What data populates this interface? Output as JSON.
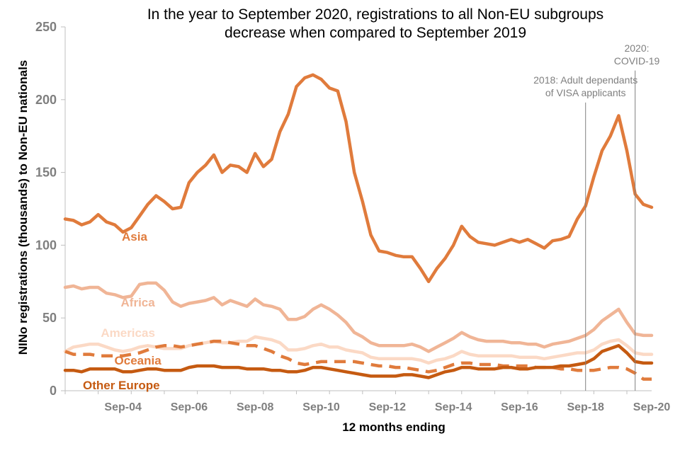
{
  "chart_data": {
    "type": "line",
    "title_lines": [
      "In the year to September 2020, registrations to all Non-EU subgroups",
      "decrease when compared to September 2019"
    ],
    "xlabel": "12 months ending",
    "ylabel": "NINo registrations (thousands) to Non-EU nationals",
    "ylim": [
      0,
      250
    ],
    "yticks": [
      0,
      50,
      100,
      150,
      200,
      250
    ],
    "xlim": [
      2003.0,
      2020.75
    ],
    "xticks": [
      {
        "x": 2004.75,
        "label": "Sep-04"
      },
      {
        "x": 2006.75,
        "label": "Sep-06"
      },
      {
        "x": 2008.75,
        "label": "Sep-08"
      },
      {
        "x": 2010.75,
        "label": "Sep-10"
      },
      {
        "x": 2012.75,
        "label": "Sep-12"
      },
      {
        "x": 2014.75,
        "label": "Sep-14"
      },
      {
        "x": 2016.75,
        "label": "Sep-16"
      },
      {
        "x": 2018.75,
        "label": "Sep-18"
      },
      {
        "x": 2020.75,
        "label": "Sep-20"
      }
    ],
    "series": [
      {
        "name": "Asia",
        "color": "#e07b3c",
        "dashed": false,
        "width": 4.5,
        "label_x": 2005.1,
        "label_y": 103,
        "x": [
          2003.0,
          2003.25,
          2003.5,
          2003.75,
          2004.0,
          2004.25,
          2004.5,
          2004.75,
          2005.0,
          2005.25,
          2005.5,
          2005.75,
          2006.0,
          2006.25,
          2006.5,
          2006.75,
          2007.0,
          2007.25,
          2007.5,
          2007.75,
          2008.0,
          2008.25,
          2008.5,
          2008.75,
          2009.0,
          2009.25,
          2009.5,
          2009.75,
          2010.0,
          2010.25,
          2010.5,
          2010.75,
          2011.0,
          2011.25,
          2011.5,
          2011.75,
          2012.0,
          2012.25,
          2012.5,
          2012.75,
          2013.0,
          2013.25,
          2013.5,
          2013.75,
          2014.0,
          2014.25,
          2014.5,
          2014.75,
          2015.0,
          2015.25,
          2015.5,
          2015.75,
          2016.0,
          2016.25,
          2016.5,
          2016.75,
          2017.0,
          2017.25,
          2017.5,
          2017.75,
          2018.0,
          2018.25,
          2018.5,
          2018.75,
          2019.0,
          2019.25,
          2019.5,
          2019.75,
          2020.0,
          2020.25,
          2020.5,
          2020.75
        ],
        "values": [
          118,
          117,
          114,
          116,
          121,
          116,
          114,
          109,
          112,
          120,
          128,
          134,
          130,
          125,
          126,
          143,
          150,
          155,
          162,
          150,
          155,
          154,
          150,
          163,
          154,
          159,
          178,
          190,
          209,
          215,
          217,
          214,
          208,
          206,
          185,
          150,
          130,
          107,
          96,
          95,
          93,
          92,
          92,
          84,
          75,
          84,
          91,
          100,
          113,
          106,
          102,
          101,
          100,
          102,
          104,
          102,
          104,
          101,
          98,
          103,
          104,
          106,
          118,
          127,
          147,
          165,
          175,
          189,
          165,
          135,
          128,
          126
        ]
      },
      {
        "name": "Africa",
        "color": "#f0b596",
        "dashed": false,
        "width": 4.5,
        "label_x": 2005.2,
        "label_y": 58,
        "x": [
          2003.0,
          2003.25,
          2003.5,
          2003.75,
          2004.0,
          2004.25,
          2004.5,
          2004.75,
          2005.0,
          2005.25,
          2005.5,
          2005.75,
          2006.0,
          2006.25,
          2006.5,
          2006.75,
          2007.0,
          2007.25,
          2007.5,
          2007.75,
          2008.0,
          2008.25,
          2008.5,
          2008.75,
          2009.0,
          2009.25,
          2009.5,
          2009.75,
          2010.0,
          2010.25,
          2010.5,
          2010.75,
          2011.0,
          2011.25,
          2011.5,
          2011.75,
          2012.0,
          2012.25,
          2012.5,
          2012.75,
          2013.0,
          2013.25,
          2013.5,
          2013.75,
          2014.0,
          2014.25,
          2014.5,
          2014.75,
          2015.0,
          2015.25,
          2015.5,
          2015.75,
          2016.0,
          2016.25,
          2016.5,
          2016.75,
          2017.0,
          2017.25,
          2017.5,
          2017.75,
          2018.0,
          2018.25,
          2018.5,
          2018.75,
          2019.0,
          2019.25,
          2019.5,
          2019.75,
          2020.0,
          2020.25,
          2020.5,
          2020.75
        ],
        "values": [
          71,
          72,
          70,
          71,
          71,
          67,
          66,
          64,
          65,
          73,
          74,
          74,
          69,
          61,
          58,
          60,
          61,
          62,
          64,
          59,
          62,
          60,
          58,
          63,
          59,
          58,
          56,
          49,
          49,
          51,
          56,
          59,
          56,
          52,
          47,
          40,
          37,
          33,
          31,
          31,
          31,
          31,
          32,
          30,
          27,
          30,
          33,
          36,
          40,
          37,
          35,
          34,
          34,
          34,
          33,
          33,
          32,
          32,
          30,
          32,
          33,
          34,
          36,
          38,
          42,
          48,
          52,
          56,
          47,
          39,
          38,
          38
        ]
      },
      {
        "name": "Americas",
        "color": "#fbd9c5",
        "dashed": false,
        "width": 4.5,
        "label_x": 2004.9,
        "label_y": 37,
        "x": [
          2003.0,
          2003.25,
          2003.5,
          2003.75,
          2004.0,
          2004.25,
          2004.5,
          2004.75,
          2005.0,
          2005.25,
          2005.5,
          2005.75,
          2006.0,
          2006.25,
          2006.5,
          2006.75,
          2007.0,
          2007.25,
          2007.5,
          2007.75,
          2008.0,
          2008.25,
          2008.5,
          2008.75,
          2009.0,
          2009.25,
          2009.5,
          2009.75,
          2010.0,
          2010.25,
          2010.5,
          2010.75,
          2011.0,
          2011.25,
          2011.5,
          2011.75,
          2012.0,
          2012.25,
          2012.5,
          2012.75,
          2013.0,
          2013.25,
          2013.5,
          2013.75,
          2014.0,
          2014.25,
          2014.5,
          2014.75,
          2015.0,
          2015.25,
          2015.5,
          2015.75,
          2016.0,
          2016.25,
          2016.5,
          2016.75,
          2017.0,
          2017.25,
          2017.5,
          2017.75,
          2018.0,
          2018.25,
          2018.5,
          2018.75,
          2019.0,
          2019.25,
          2019.5,
          2019.75,
          2020.0,
          2020.25,
          2020.5,
          2020.75
        ],
        "values": [
          27,
          30,
          31,
          32,
          32,
          30,
          28,
          27,
          28,
          30,
          31,
          30,
          29,
          29,
          29,
          31,
          32,
          33,
          34,
          33,
          33,
          34,
          34,
          37,
          36,
          35,
          33,
          28,
          28,
          29,
          31,
          32,
          30,
          30,
          28,
          27,
          26,
          23,
          22,
          22,
          22,
          22,
          22,
          21,
          19,
          21,
          22,
          24,
          27,
          25,
          24,
          24,
          24,
          24,
          24,
          23,
          23,
          23,
          22,
          23,
          24,
          25,
          26,
          26,
          28,
          32,
          34,
          35,
          31,
          26,
          25,
          25
        ]
      },
      {
        "name": "Oceania",
        "color": "#e07b3c",
        "dashed": true,
        "width": 4.5,
        "label_x": 2005.2,
        "label_y": 18,
        "x": [
          2003.0,
          2003.25,
          2003.5,
          2003.75,
          2004.0,
          2004.25,
          2004.5,
          2004.75,
          2005.0,
          2005.25,
          2005.5,
          2005.75,
          2006.0,
          2006.25,
          2006.5,
          2006.75,
          2007.0,
          2007.25,
          2007.5,
          2007.75,
          2008.0,
          2008.25,
          2008.5,
          2008.75,
          2009.0,
          2009.25,
          2009.5,
          2009.75,
          2010.0,
          2010.25,
          2010.5,
          2010.75,
          2011.0,
          2011.25,
          2011.5,
          2011.75,
          2012.0,
          2012.25,
          2012.5,
          2012.75,
          2013.0,
          2013.25,
          2013.5,
          2013.75,
          2014.0,
          2014.25,
          2014.5,
          2014.75,
          2015.0,
          2015.25,
          2015.5,
          2015.75,
          2016.0,
          2016.25,
          2016.5,
          2016.75,
          2017.0,
          2017.25,
          2017.5,
          2017.75,
          2018.0,
          2018.25,
          2018.5,
          2018.75,
          2019.0,
          2019.25,
          2019.5,
          2019.75,
          2020.0,
          2020.25,
          2020.5,
          2020.75
        ],
        "values": [
          27,
          25,
          25,
          25,
          24,
          24,
          24,
          24,
          25,
          26,
          28,
          30,
          31,
          31,
          30,
          31,
          32,
          33,
          34,
          34,
          33,
          32,
          31,
          31,
          29,
          27,
          24,
          22,
          19,
          18,
          19,
          20,
          20,
          20,
          20,
          20,
          19,
          18,
          17,
          17,
          16,
          16,
          15,
          14,
          13,
          14,
          16,
          18,
          19,
          19,
          18,
          18,
          18,
          17,
          17,
          17,
          17,
          16,
          16,
          16,
          15,
          15,
          14,
          14,
          14,
          15,
          16,
          16,
          15,
          12,
          8,
          8
        ]
      },
      {
        "name": "Other Europe",
        "color": "#c55a11",
        "dashed": false,
        "width": 4.5,
        "label_x": 2004.7,
        "label_y": 1,
        "x": [
          2003.0,
          2003.25,
          2003.5,
          2003.75,
          2004.0,
          2004.25,
          2004.5,
          2004.75,
          2005.0,
          2005.25,
          2005.5,
          2005.75,
          2006.0,
          2006.25,
          2006.5,
          2006.75,
          2007.0,
          2007.25,
          2007.5,
          2007.75,
          2008.0,
          2008.25,
          2008.5,
          2008.75,
          2009.0,
          2009.25,
          2009.5,
          2009.75,
          2010.0,
          2010.25,
          2010.5,
          2010.75,
          2011.0,
          2011.25,
          2011.5,
          2011.75,
          2012.0,
          2012.25,
          2012.5,
          2012.75,
          2013.0,
          2013.25,
          2013.5,
          2013.75,
          2014.0,
          2014.25,
          2014.5,
          2014.75,
          2015.0,
          2015.25,
          2015.5,
          2015.75,
          2016.0,
          2016.25,
          2016.5,
          2016.75,
          2017.0,
          2017.25,
          2017.5,
          2017.75,
          2018.0,
          2018.25,
          2018.5,
          2018.75,
          2019.0,
          2019.25,
          2019.5,
          2019.75,
          2020.0,
          2020.25,
          2020.5,
          2020.75
        ],
        "values": [
          14,
          14,
          13,
          15,
          15,
          15,
          15,
          13,
          13,
          14,
          15,
          15,
          14,
          14,
          14,
          16,
          17,
          17,
          17,
          16,
          16,
          16,
          15,
          15,
          15,
          14,
          14,
          13,
          13,
          14,
          16,
          16,
          15,
          14,
          13,
          12,
          11,
          10,
          10,
          10,
          10,
          11,
          11,
          10,
          9,
          11,
          13,
          14,
          16,
          16,
          15,
          15,
          15,
          16,
          16,
          15,
          15,
          16,
          16,
          16,
          17,
          17,
          18,
          19,
          22,
          27,
          29,
          31,
          26,
          20,
          19,
          19
        ]
      }
    ],
    "annotations": [
      {
        "x": 2018.75,
        "lines": [
          "2018: Adult dependants",
          "of VISA applicants"
        ],
        "text_x": 2018.75,
        "text_y": 211
      },
      {
        "x": 2020.25,
        "lines": [
          "2020:",
          "COVID-19"
        ],
        "text_x": 2020.3,
        "text_y": 233
      }
    ]
  }
}
